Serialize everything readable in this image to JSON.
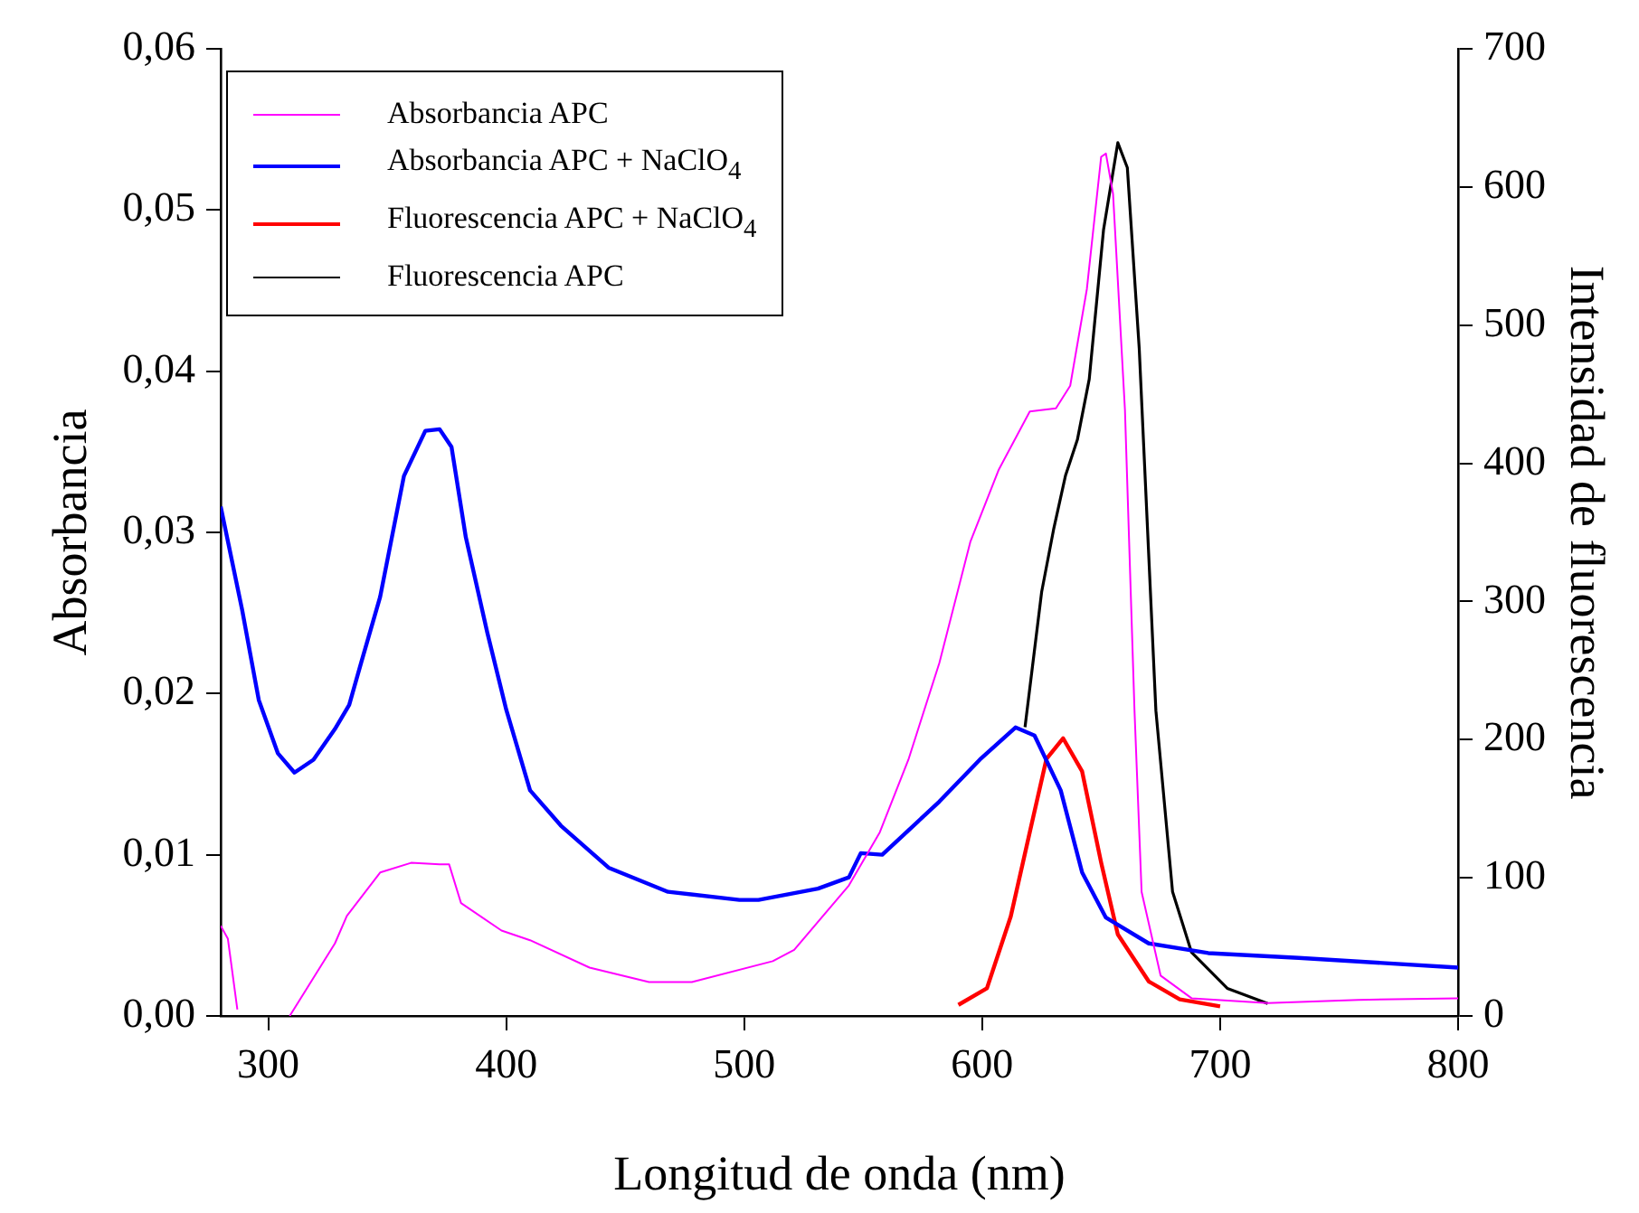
{
  "chart_data": {
    "type": "line",
    "xlabel": "Longitud de onda (nm)",
    "ylabel": "Absorbancia",
    "y2label": "Intensidad de fluorescencia",
    "xlim": [
      280,
      800
    ],
    "xticks": [
      300,
      400,
      500,
      600,
      700,
      800
    ],
    "ylim": [
      0,
      0.06
    ],
    "yticks": [
      {
        "value": 0,
        "label": "0,00"
      },
      {
        "value": 0.01,
        "label": "0,01"
      },
      {
        "value": 0.02,
        "label": "0,02"
      },
      {
        "value": 0.03,
        "label": "0,03"
      },
      {
        "value": 0.04,
        "label": "0,04"
      },
      {
        "value": 0.05,
        "label": "0,05"
      },
      {
        "value": 0.06,
        "label": "0,06"
      }
    ],
    "y2lim": [
      0,
      700
    ],
    "y2ticks": [
      0,
      100,
      200,
      300,
      400,
      500,
      600,
      700
    ],
    "grid": false,
    "legend": "top left",
    "marker": "none",
    "line_style": "solid",
    "series": [
      {
        "name": "Absorbancia APC",
        "color": "#ff00ff",
        "x": [
          280,
          283,
          287,
          288,
          309,
          328,
          333,
          347,
          360,
          372,
          376,
          381,
          398,
          410,
          435,
          460,
          478,
          512,
          521,
          544,
          557,
          569,
          582,
          595,
          607,
          620,
          631,
          637,
          644,
          650,
          652,
          655,
          660,
          664,
          667,
          675,
          688,
          720,
          758,
          800
        ],
        "values": [
          0.0056,
          0.0048,
          0.0004,
          null,
          0,
          0.0045,
          0.0062,
          0.0089,
          0.0095,
          0.0094,
          0.0094,
          0.007,
          0.0053,
          0.0047,
          0.003,
          0.0021,
          0.0021,
          0.0034,
          0.0041,
          0.0081,
          0.0114,
          0.0159,
          0.0219,
          0.0294,
          0.0339,
          0.0375,
          0.0377,
          0.0391,
          0.0451,
          0.0533,
          0.0535,
          0.051,
          0.0376,
          0.019,
          0.0077,
          0.0025,
          0.0011,
          0.0008,
          0.001,
          0.0011
        ]
      },
      {
        "name": "Absorbancia APC + NaClO$_{4}$",
        "color": "#0000ff",
        "x": [
          280,
          289,
          296,
          304,
          311,
          319,
          328,
          334,
          339,
          347,
          357,
          366,
          372,
          377,
          383,
          392,
          400,
          410,
          423,
          443,
          468,
          498,
          506,
          531,
          544,
          549,
          558,
          582,
          599,
          614,
          622,
          633,
          642,
          652,
          670,
          695,
          733,
          800
        ],
        "values": [
          0.0316,
          0.0252,
          0.0196,
          0.0163,
          0.0151,
          0.0159,
          0.0178,
          0.0193,
          0.0219,
          0.026,
          0.0335,
          0.0363,
          0.0364,
          0.0353,
          0.0297,
          0.0238,
          0.019,
          0.014,
          0.0118,
          0.0092,
          0.0077,
          0.0072,
          0.0072,
          0.0079,
          0.0086,
          0.0101,
          0.01,
          0.0133,
          0.0159,
          0.0179,
          0.0174,
          0.014,
          0.0089,
          0.0061,
          0.0045,
          0.0039,
          0.0036,
          0.003
        ]
      },
      {
        "name": "Fluorescencia APC + NaClO$_{4}$",
        "color": "#ff0000",
        "axis": "y2",
        "x": [
          590,
          602,
          612,
          620,
          627,
          634,
          642,
          650,
          657,
          670,
          683,
          700
        ],
        "values": [
          8,
          20,
          72,
          133,
          186,
          201,
          177,
          111,
          59,
          25,
          12,
          7
        ]
      },
      {
        "name": "Fluorescencia APC",
        "color": "#000000",
        "axis": "y2",
        "x": [
          618,
          625,
          630,
          635,
          640,
          645,
          651,
          657,
          661,
          666,
          673,
          680,
          688,
          703,
          720
        ],
        "values": [
          209,
          307,
          352,
          391,
          417,
          461,
          569,
          632,
          614,
          483,
          221,
          90,
          46,
          20,
          9
        ]
      }
    ]
  }
}
